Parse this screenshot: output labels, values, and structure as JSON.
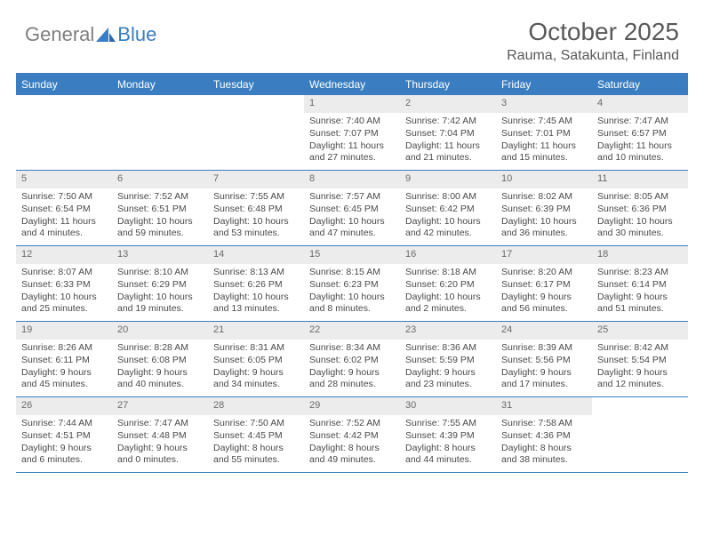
{
  "brand": {
    "general": "General",
    "blue": "Blue"
  },
  "title": "October 2025",
  "location": "Rauma, Satakunta, Finland",
  "colors": {
    "accent": "#3a7ec1",
    "header_text": "#595959",
    "body_text": "#4a4a4a",
    "daynum_bg": "#ececec",
    "background": "#ffffff"
  },
  "day_headers": [
    "Sunday",
    "Monday",
    "Tuesday",
    "Wednesday",
    "Thursday",
    "Friday",
    "Saturday"
  ],
  "weeks": [
    [
      {
        "n": "",
        "sr": "",
        "ss": "",
        "dl": ""
      },
      {
        "n": "",
        "sr": "",
        "ss": "",
        "dl": ""
      },
      {
        "n": "",
        "sr": "",
        "ss": "",
        "dl": ""
      },
      {
        "n": "1",
        "sr": "Sunrise: 7:40 AM",
        "ss": "Sunset: 7:07 PM",
        "dl": "Daylight: 11 hours and 27 minutes."
      },
      {
        "n": "2",
        "sr": "Sunrise: 7:42 AM",
        "ss": "Sunset: 7:04 PM",
        "dl": "Daylight: 11 hours and 21 minutes."
      },
      {
        "n": "3",
        "sr": "Sunrise: 7:45 AM",
        "ss": "Sunset: 7:01 PM",
        "dl": "Daylight: 11 hours and 15 minutes."
      },
      {
        "n": "4",
        "sr": "Sunrise: 7:47 AM",
        "ss": "Sunset: 6:57 PM",
        "dl": "Daylight: 11 hours and 10 minutes."
      }
    ],
    [
      {
        "n": "5",
        "sr": "Sunrise: 7:50 AM",
        "ss": "Sunset: 6:54 PM",
        "dl": "Daylight: 11 hours and 4 minutes."
      },
      {
        "n": "6",
        "sr": "Sunrise: 7:52 AM",
        "ss": "Sunset: 6:51 PM",
        "dl": "Daylight: 10 hours and 59 minutes."
      },
      {
        "n": "7",
        "sr": "Sunrise: 7:55 AM",
        "ss": "Sunset: 6:48 PM",
        "dl": "Daylight: 10 hours and 53 minutes."
      },
      {
        "n": "8",
        "sr": "Sunrise: 7:57 AM",
        "ss": "Sunset: 6:45 PM",
        "dl": "Daylight: 10 hours and 47 minutes."
      },
      {
        "n": "9",
        "sr": "Sunrise: 8:00 AM",
        "ss": "Sunset: 6:42 PM",
        "dl": "Daylight: 10 hours and 42 minutes."
      },
      {
        "n": "10",
        "sr": "Sunrise: 8:02 AM",
        "ss": "Sunset: 6:39 PM",
        "dl": "Daylight: 10 hours and 36 minutes."
      },
      {
        "n": "11",
        "sr": "Sunrise: 8:05 AM",
        "ss": "Sunset: 6:36 PM",
        "dl": "Daylight: 10 hours and 30 minutes."
      }
    ],
    [
      {
        "n": "12",
        "sr": "Sunrise: 8:07 AM",
        "ss": "Sunset: 6:33 PM",
        "dl": "Daylight: 10 hours and 25 minutes."
      },
      {
        "n": "13",
        "sr": "Sunrise: 8:10 AM",
        "ss": "Sunset: 6:29 PM",
        "dl": "Daylight: 10 hours and 19 minutes."
      },
      {
        "n": "14",
        "sr": "Sunrise: 8:13 AM",
        "ss": "Sunset: 6:26 PM",
        "dl": "Daylight: 10 hours and 13 minutes."
      },
      {
        "n": "15",
        "sr": "Sunrise: 8:15 AM",
        "ss": "Sunset: 6:23 PM",
        "dl": "Daylight: 10 hours and 8 minutes."
      },
      {
        "n": "16",
        "sr": "Sunrise: 8:18 AM",
        "ss": "Sunset: 6:20 PM",
        "dl": "Daylight: 10 hours and 2 minutes."
      },
      {
        "n": "17",
        "sr": "Sunrise: 8:20 AM",
        "ss": "Sunset: 6:17 PM",
        "dl": "Daylight: 9 hours and 56 minutes."
      },
      {
        "n": "18",
        "sr": "Sunrise: 8:23 AM",
        "ss": "Sunset: 6:14 PM",
        "dl": "Daylight: 9 hours and 51 minutes."
      }
    ],
    [
      {
        "n": "19",
        "sr": "Sunrise: 8:26 AM",
        "ss": "Sunset: 6:11 PM",
        "dl": "Daylight: 9 hours and 45 minutes."
      },
      {
        "n": "20",
        "sr": "Sunrise: 8:28 AM",
        "ss": "Sunset: 6:08 PM",
        "dl": "Daylight: 9 hours and 40 minutes."
      },
      {
        "n": "21",
        "sr": "Sunrise: 8:31 AM",
        "ss": "Sunset: 6:05 PM",
        "dl": "Daylight: 9 hours and 34 minutes."
      },
      {
        "n": "22",
        "sr": "Sunrise: 8:34 AM",
        "ss": "Sunset: 6:02 PM",
        "dl": "Daylight: 9 hours and 28 minutes."
      },
      {
        "n": "23",
        "sr": "Sunrise: 8:36 AM",
        "ss": "Sunset: 5:59 PM",
        "dl": "Daylight: 9 hours and 23 minutes."
      },
      {
        "n": "24",
        "sr": "Sunrise: 8:39 AM",
        "ss": "Sunset: 5:56 PM",
        "dl": "Daylight: 9 hours and 17 minutes."
      },
      {
        "n": "25",
        "sr": "Sunrise: 8:42 AM",
        "ss": "Sunset: 5:54 PM",
        "dl": "Daylight: 9 hours and 12 minutes."
      }
    ],
    [
      {
        "n": "26",
        "sr": "Sunrise: 7:44 AM",
        "ss": "Sunset: 4:51 PM",
        "dl": "Daylight: 9 hours and 6 minutes."
      },
      {
        "n": "27",
        "sr": "Sunrise: 7:47 AM",
        "ss": "Sunset: 4:48 PM",
        "dl": "Daylight: 9 hours and 0 minutes."
      },
      {
        "n": "28",
        "sr": "Sunrise: 7:50 AM",
        "ss": "Sunset: 4:45 PM",
        "dl": "Daylight: 8 hours and 55 minutes."
      },
      {
        "n": "29",
        "sr": "Sunrise: 7:52 AM",
        "ss": "Sunset: 4:42 PM",
        "dl": "Daylight: 8 hours and 49 minutes."
      },
      {
        "n": "30",
        "sr": "Sunrise: 7:55 AM",
        "ss": "Sunset: 4:39 PM",
        "dl": "Daylight: 8 hours and 44 minutes."
      },
      {
        "n": "31",
        "sr": "Sunrise: 7:58 AM",
        "ss": "Sunset: 4:36 PM",
        "dl": "Daylight: 8 hours and 38 minutes."
      },
      {
        "n": "",
        "sr": "",
        "ss": "",
        "dl": ""
      }
    ]
  ]
}
